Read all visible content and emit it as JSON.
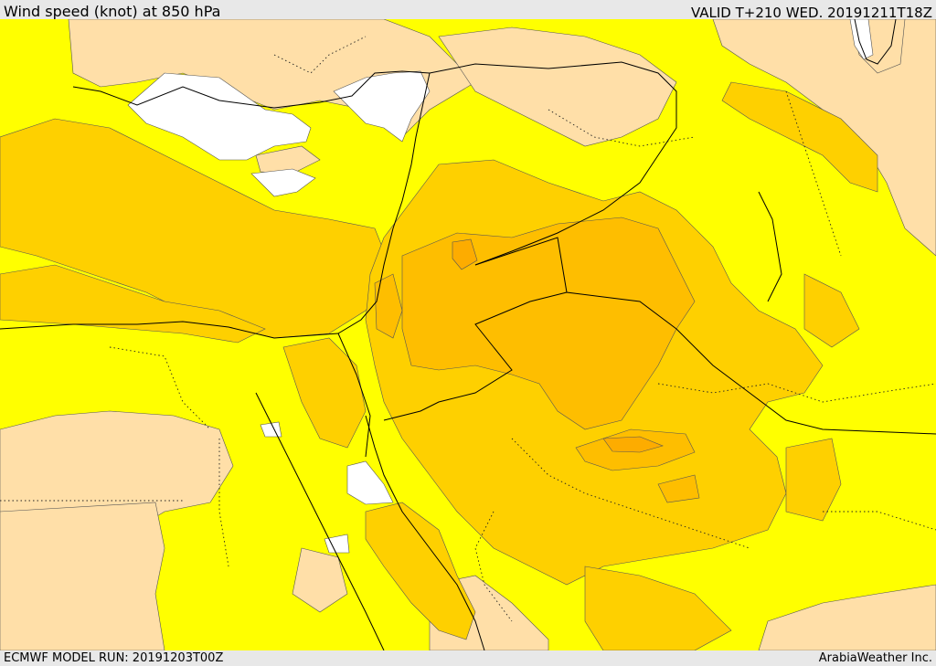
{
  "header": {
    "title": "Wind speed (knot) at 850 hPa",
    "valid_time": "VALID T+210 WED. 20191211T18Z"
  },
  "footer": {
    "model_run": "ECMWF MODEL RUN: 20191203T00Z",
    "credit": "ArabiaWeather Inc."
  },
  "colors": {
    "land_calm": "#ffdfa8",
    "band_1": "#ffff00",
    "band_2": "#fed000",
    "band_3": "#febe00",
    "band_4": "#fdac00",
    "sea_no_data": "#ffffff",
    "borders": "#000000"
  }
}
